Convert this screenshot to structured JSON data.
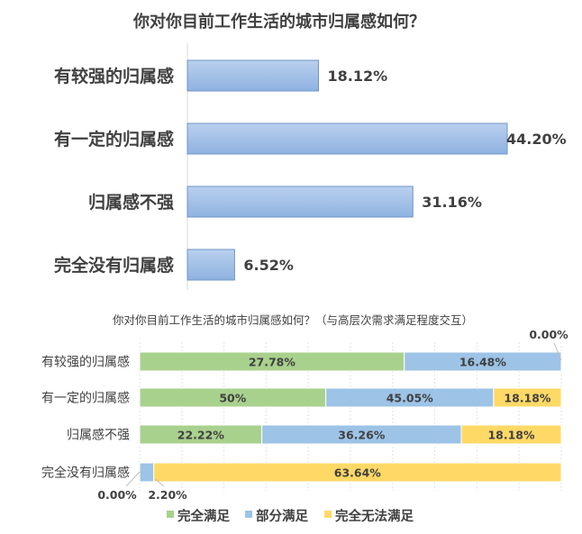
{
  "chart_data": [
    {
      "type": "bar",
      "orientation": "horizontal",
      "title": "你对你目前工作生活的城市归属感如何？",
      "categories": [
        "有较强的归属感",
        "有一定的归属感",
        "归属感不强",
        "完全没有归属感"
      ],
      "values": [
        18.12,
        44.2,
        31.16,
        6.52
      ],
      "value_labels": [
        "18.12%",
        "44.20%",
        "31.16%",
        "6.52%"
      ],
      "unit": "%",
      "grid": false,
      "colors": {
        "bar": "#9dbde6",
        "bar_border": "#4f81bd"
      }
    },
    {
      "type": "bar",
      "orientation": "horizontal",
      "stacked": "100%",
      "title": "你对你目前工作生活的城市归属感如何？（与高层次需求满足程度交互）",
      "categories": [
        "有较强的归属感",
        "有一定的归属感",
        "归属感不强",
        "完全没有归属感"
      ],
      "series": [
        {
          "name": "完全满足",
          "color": "#a9d18e",
          "values": [
            27.78,
            50,
            22.22,
            0.0
          ],
          "labels": [
            "27.78%",
            "50%",
            "22.22%",
            "0.00%"
          ]
        },
        {
          "name": "部分满足",
          "color": "#9dc3e6",
          "values": [
            16.48,
            45.05,
            36.26,
            2.2
          ],
          "labels": [
            "16.48%",
            "45.05%",
            "36.26%",
            "2.20%"
          ]
        },
        {
          "name": "完全无法满足",
          "color": "#ffd966",
          "values": [
            0.0,
            18.18,
            18.18,
            63.64
          ],
          "labels": [
            "0.00%",
            "18.18%",
            "18.18%",
            "63.64%"
          ]
        }
      ],
      "grid": true,
      "legend": "bottom"
    }
  ]
}
